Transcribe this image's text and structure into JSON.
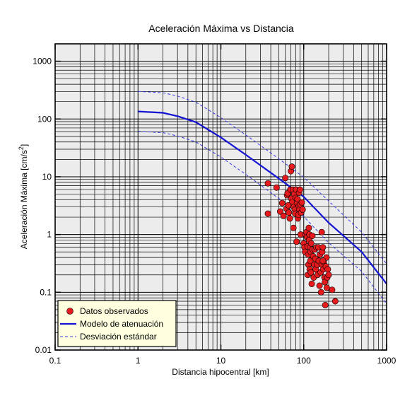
{
  "chart_data": {
    "type": "scatter",
    "title": "Aceleración Máxima vs Distancia",
    "xlabel": "Distancia hipocentral [km]",
    "ylabel_main": "Aceleración Máxima [cm/s",
    "ylabel_sup": "2",
    "ylabel_end": "]",
    "x_scale": "log",
    "y_scale": "log",
    "xlim": [
      0.1,
      1000
    ],
    "ylim": [
      0.01,
      2000
    ],
    "x_ticks": [
      0.1,
      1,
      10,
      100,
      1000
    ],
    "x_tick_labels": [
      "0.1",
      "1",
      "10",
      "100",
      "1000"
    ],
    "y_ticks": [
      0.01,
      0.1,
      1,
      10,
      100,
      1000
    ],
    "y_tick_labels": [
      "0.01",
      "0.1",
      "1",
      "10",
      "100",
      "1000"
    ],
    "grid": true,
    "legend_position": "bottom-left",
    "colors": {
      "background": "#ececec",
      "points": "#e41a1c",
      "model": "#1414d2",
      "deviation": "#3a3ae6",
      "legend_bg": "#ffffe0"
    },
    "series": [
      {
        "name": "Datos observados",
        "kind": "points",
        "points": [
          [
            37,
            7.7
          ],
          [
            37,
            2.3
          ],
          [
            47,
            6.5
          ],
          [
            52,
            2.5
          ],
          [
            55,
            3.5
          ],
          [
            57,
            2.1
          ],
          [
            60,
            9.5
          ],
          [
            62,
            2.8
          ],
          [
            63,
            4.8
          ],
          [
            64,
            5.2
          ],
          [
            65,
            3.2
          ],
          [
            66,
            2.4
          ],
          [
            68,
            1.9
          ],
          [
            69,
            6.0
          ],
          [
            70,
            12.5
          ],
          [
            71,
            4.2
          ],
          [
            72,
            15.0
          ],
          [
            73,
            3.7
          ],
          [
            74,
            6.0
          ],
          [
            75,
            1.3
          ],
          [
            76,
            3.0
          ],
          [
            77,
            5.0
          ],
          [
            78,
            2.7
          ],
          [
            79,
            2.3
          ],
          [
            80,
            4.3
          ],
          [
            81,
            6.0
          ],
          [
            82,
            0.75
          ],
          [
            83,
            3.5
          ],
          [
            84,
            4.1
          ],
          [
            85,
            1.9
          ],
          [
            86,
            2.2
          ],
          [
            87,
            3.1
          ],
          [
            88,
            5.3
          ],
          [
            89,
            2.7
          ],
          [
            90,
            6.0
          ],
          [
            91,
            3.3
          ],
          [
            92,
            1.0
          ],
          [
            93,
            2.4
          ],
          [
            95,
            3.6
          ],
          [
            97,
            2.7
          ],
          [
            100,
            0.7
          ],
          [
            102,
            0.6
          ],
          [
            104,
            0.5
          ],
          [
            106,
            1.0
          ],
          [
            108,
            1.1
          ],
          [
            110,
            0.9
          ],
          [
            111,
            0.62
          ],
          [
            112,
            0.2
          ],
          [
            113,
            0.45
          ],
          [
            114,
            0.3
          ],
          [
            115,
            1.3
          ],
          [
            116,
            0.8
          ],
          [
            117,
            1.0
          ],
          [
            118,
            0.25
          ],
          [
            119,
            0.6
          ],
          [
            120,
            0.35
          ],
          [
            121,
            0.5
          ],
          [
            122,
            0.22
          ],
          [
            123,
            0.7
          ],
          [
            125,
            0.14
          ],
          [
            127,
            0.95
          ],
          [
            128,
            0.55
          ],
          [
            130,
            0.42
          ],
          [
            132,
            0.18
          ],
          [
            134,
            0.3
          ],
          [
            136,
            0.55
          ],
          [
            138,
            0.38
          ],
          [
            140,
            0.25
          ],
          [
            142,
            0.6
          ],
          [
            145,
            0.3
          ],
          [
            147,
            0.2
          ],
          [
            150,
            0.6
          ],
          [
            152,
            0.35
          ],
          [
            155,
            0.13
          ],
          [
            157,
            0.45
          ],
          [
            160,
            0.22
          ],
          [
            162,
            0.1
          ],
          [
            165,
            0.3
          ],
          [
            167,
            0.5
          ],
          [
            170,
            0.6
          ],
          [
            172,
            0.25
          ],
          [
            175,
            0.33
          ],
          [
            178,
            0.18
          ],
          [
            180,
            0.15
          ],
          [
            182,
            0.06
          ],
          [
            185,
            0.28
          ],
          [
            188,
            0.4
          ],
          [
            190,
            0.12
          ],
          [
            192,
            0.18
          ],
          [
            195,
            0.25
          ],
          [
            200,
            0.2
          ],
          [
            220,
            0.11
          ],
          [
            240,
            0.07
          ],
          [
            165,
            1.1
          ],
          [
            170,
            0.35
          ]
        ]
      },
      {
        "name": "Modelo de atenuación",
        "kind": "line",
        "points": [
          [
            1,
            135
          ],
          [
            2,
            128
          ],
          [
            3,
            112
          ],
          [
            5,
            88
          ],
          [
            10,
            48
          ],
          [
            20,
            24
          ],
          [
            50,
            9.3
          ],
          [
            100,
            4.5
          ],
          [
            200,
            1.6
          ],
          [
            500,
            0.5
          ],
          [
            1000,
            0.14
          ]
        ]
      },
      {
        "name": "Desviación estándar",
        "kind": "dashed",
        "points": [
          [
            1,
            300
          ],
          [
            2,
            284
          ],
          [
            3,
            250
          ],
          [
            5,
            195
          ],
          [
            10,
            106
          ],
          [
            20,
            53
          ],
          [
            50,
            20.5
          ],
          [
            100,
            9.8
          ],
          [
            200,
            3.8
          ],
          [
            500,
            1.1
          ],
          [
            1000,
            0.31
          ]
        ]
      },
      {
        "name": "",
        "kind": "dashed",
        "points": [
          [
            1,
            61
          ],
          [
            2,
            58
          ],
          [
            3,
            51
          ],
          [
            5,
            40
          ],
          [
            10,
            22
          ],
          [
            20,
            11
          ],
          [
            50,
            4.2
          ],
          [
            100,
            2.05
          ],
          [
            200,
            0.72
          ],
          [
            500,
            0.23
          ],
          [
            1000,
            0.063
          ]
        ]
      }
    ]
  }
}
